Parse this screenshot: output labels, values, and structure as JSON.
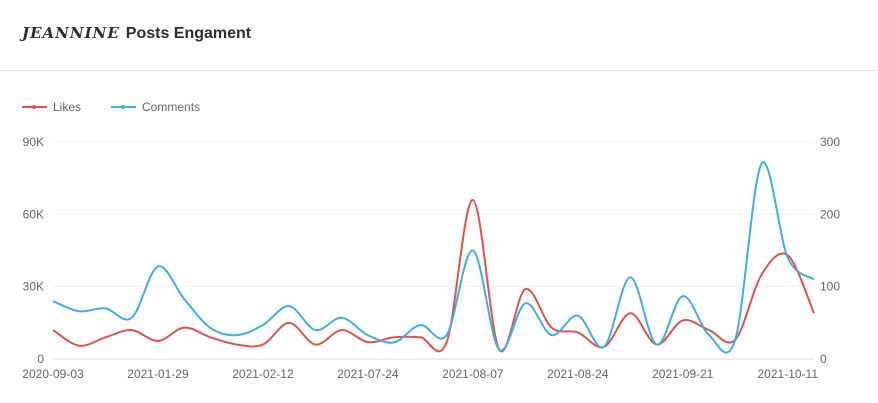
{
  "header": {
    "brand": "JEANNINE",
    "title": "Posts Engament"
  },
  "chart_data": {
    "type": "line",
    "title": "JEANNINE Posts Engament",
    "x_tick_labels": [
      "2020-09-03",
      "2021-01-29",
      "2021-02-12",
      "2021-07-24",
      "2021-08-07",
      "2021-08-24",
      "2021-09-21",
      "2021-10-11"
    ],
    "x_tick_every": 4,
    "left_axis": {
      "ticks": [
        "0",
        "30K",
        "60K",
        "90K"
      ],
      "range": [
        0,
        90000
      ]
    },
    "right_axis": {
      "ticks": [
        "0",
        "100",
        "200",
        "300"
      ],
      "range": [
        0,
        300
      ]
    },
    "grid": true,
    "legend_position": "top-left",
    "series": [
      {
        "name": "Likes",
        "axis": "left",
        "color": "#e5514a",
        "values": [
          12000,
          5500,
          9000,
          12000,
          7500,
          13000,
          9000,
          6000,
          6000,
          15000,
          6000,
          12000,
          7000,
          9000,
          9000,
          7000,
          66000,
          4000,
          29000,
          13000,
          11000,
          5000,
          19000,
          6000,
          16000,
          12000,
          8000,
          35000,
          43000,
          19000
        ]
      },
      {
        "name": "Comments",
        "axis": "right",
        "color": "#3ab1e0",
        "values": [
          80,
          66,
          70,
          57,
          128,
          83,
          43,
          33,
          47,
          73,
          40,
          57,
          33,
          23,
          47,
          33,
          150,
          13,
          77,
          33,
          60,
          17,
          113,
          20,
          87,
          33,
          27,
          270,
          140,
          110
        ]
      }
    ]
  }
}
